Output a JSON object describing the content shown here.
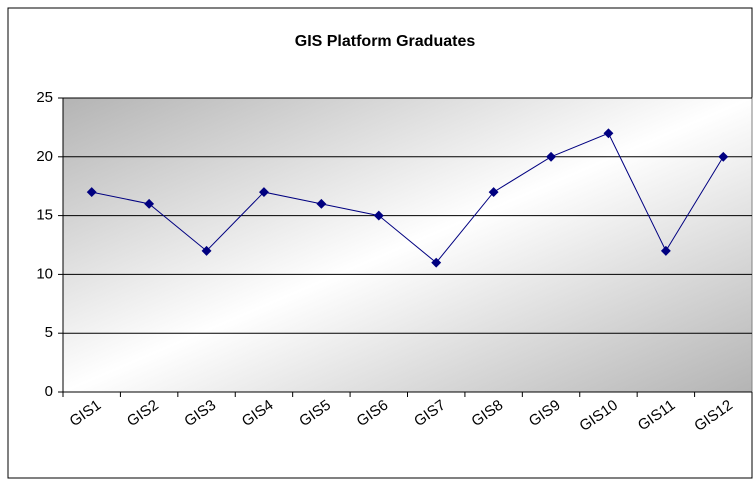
{
  "chart_data": {
    "type": "line",
    "title": "GIS Platform Graduates",
    "categories": [
      "GIS1",
      "GIS2",
      "GIS3",
      "GIS4",
      "GIS5",
      "GIS6",
      "GIS7",
      "GIS8",
      "GIS9",
      "GIS10",
      "GIS11",
      "GIS12"
    ],
    "values": [
      17,
      16,
      12,
      17,
      16,
      15,
      11,
      17,
      20,
      22,
      12,
      20
    ],
    "color": "#000080",
    "ylim": [
      0,
      25
    ],
    "yticks": [
      0,
      5,
      10,
      15,
      20,
      25
    ],
    "grid": true
  }
}
